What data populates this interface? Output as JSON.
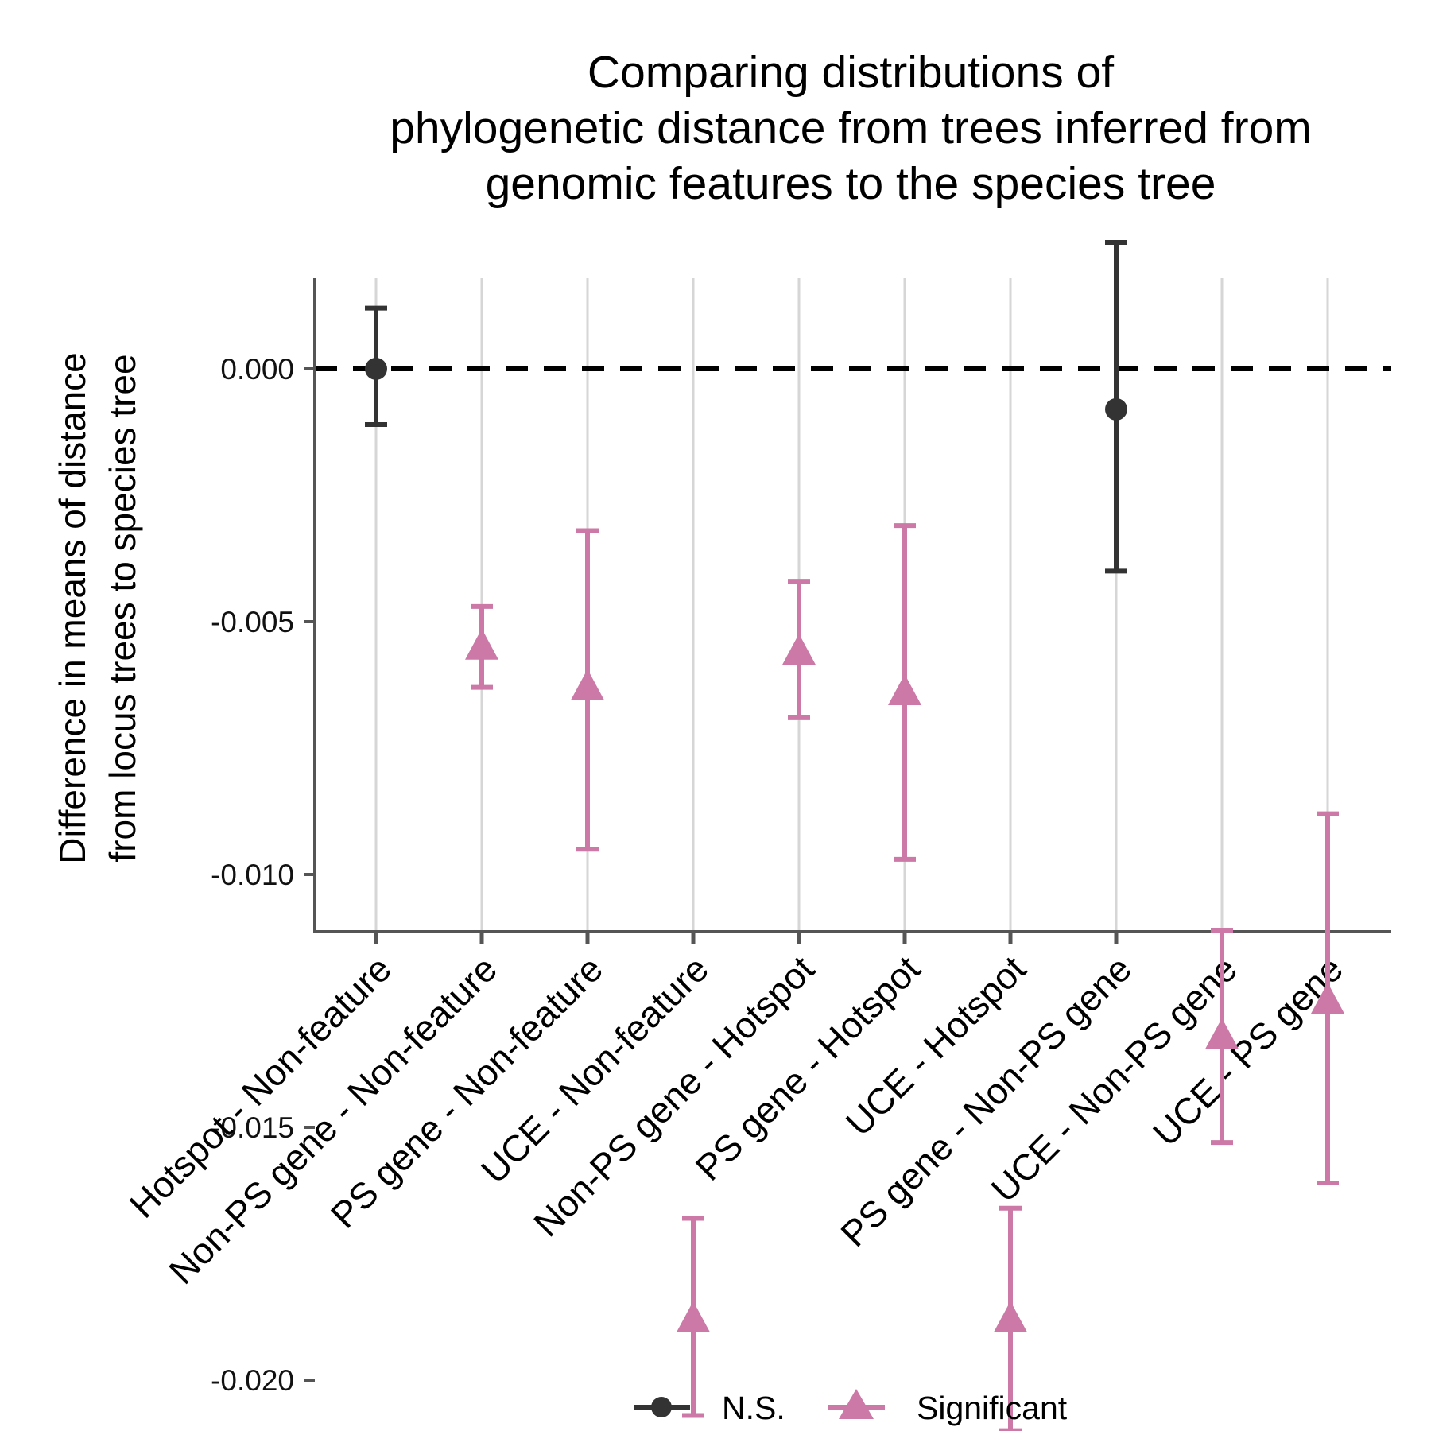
{
  "chart_data": {
    "type": "scatter",
    "title": [
      "Comparing distributions of",
      "phylogenetic distance from trees inferred from",
      "genomic features to the species tree"
    ],
    "ylabel": [
      "Difference in means of distance",
      "from locus trees to species tree"
    ],
    "xlabel": "",
    "categories": [
      "Hotspot - Non-feature",
      "Non-PS gene - Non-feature",
      "PS gene - Non-feature",
      "UCE - Non-feature",
      "Non-PS gene - Hotspot",
      "PS gene - Hotspot",
      "UCE - Hotspot",
      "PS gene - Non-PS gene",
      "UCE - Non-PS gene",
      "UCE - PS gene"
    ],
    "yticks": [
      0.0,
      -0.005,
      -0.01,
      -0.015,
      -0.02
    ],
    "ytick_labels": [
      "0.000",
      "-0.005",
      "-0.010",
      "-0.015",
      "-0.020"
    ],
    "ylim": [
      -0.0222,
      0.0036
    ],
    "reference_line": 0,
    "grid": "vertical",
    "legend_position": "bottom",
    "series": [
      {
        "name": "N.S.",
        "color": "#333333",
        "marker": "circle",
        "points": [
          {
            "category": "Hotspot - Non-feature",
            "y": 0.0,
            "lower": -0.0011,
            "upper": 0.0012
          },
          {
            "category": "PS gene - Non-PS gene",
            "y": -0.0008,
            "lower": -0.004,
            "upper": 0.0025
          }
        ]
      },
      {
        "name": "Significant",
        "color": "#cc79a7",
        "marker": "triangle",
        "points": [
          {
            "category": "Non-PS gene - Non-feature",
            "y": -0.0055,
            "lower": -0.0063,
            "upper": -0.0047
          },
          {
            "category": "PS gene - Non-feature",
            "y": -0.0063,
            "lower": -0.0095,
            "upper": -0.0032
          },
          {
            "category": "UCE - Non-feature",
            "y": -0.0188,
            "lower": -0.0207,
            "upper": -0.0168
          },
          {
            "category": "Non-PS gene - Hotspot",
            "y": -0.0056,
            "lower": -0.0069,
            "upper": -0.0042
          },
          {
            "category": "PS gene - Hotspot",
            "y": -0.0064,
            "lower": -0.0097,
            "upper": -0.0031
          },
          {
            "category": "UCE - Hotspot",
            "y": -0.0188,
            "lower": -0.021,
            "upper": -0.0166
          },
          {
            "category": "UCE - Non-PS gene",
            "y": -0.0132,
            "lower": -0.0153,
            "upper": -0.0111
          },
          {
            "category": "UCE - PS gene",
            "y": -0.0125,
            "lower": -0.0161,
            "upper": -0.0088
          }
        ]
      }
    ]
  }
}
